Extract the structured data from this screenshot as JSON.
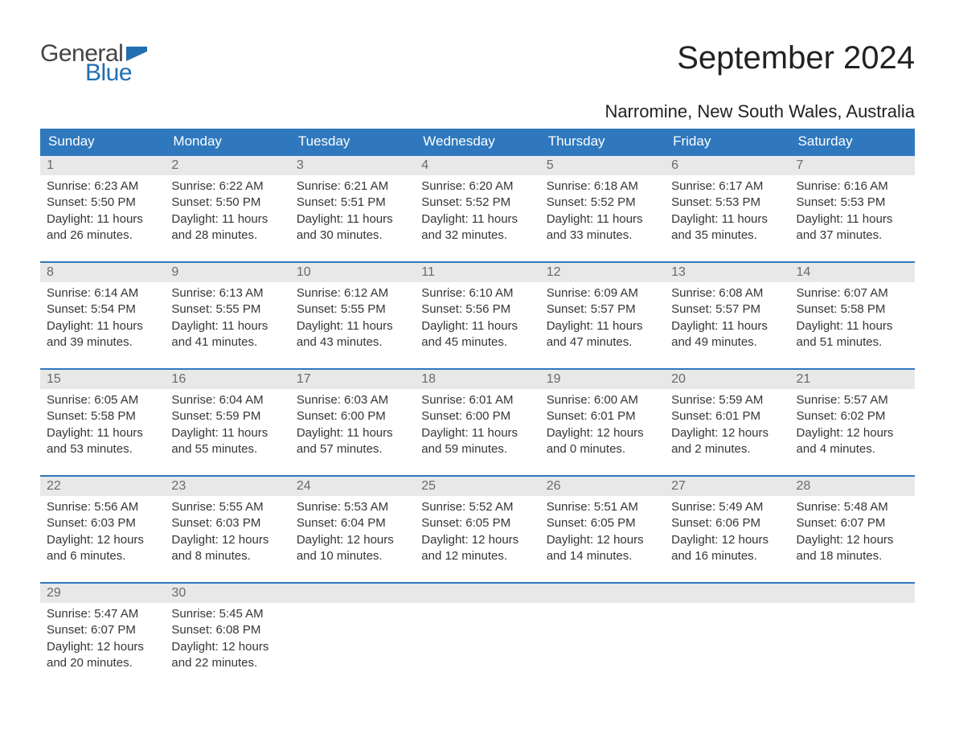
{
  "brand": {
    "word1": "General",
    "word2": "Blue",
    "word1_color": "#444444",
    "word2_color": "#1f6fb2",
    "flag_color": "#1f6fb2"
  },
  "title": "September 2024",
  "location": "Narromine, New South Wales, Australia",
  "colors": {
    "header_bg": "#2f78be",
    "header_text": "#ffffff",
    "daynum_bg": "#e8e8e8",
    "daynum_text": "#6a6a6a",
    "body_text": "#353535",
    "week_border": "#2f78be",
    "page_bg": "#ffffff"
  },
  "typography": {
    "title_fontsize": 40,
    "location_fontsize": 22,
    "dow_fontsize": 17,
    "daynum_fontsize": 16,
    "body_fontsize": 15
  },
  "days_of_week": [
    "Sunday",
    "Monday",
    "Tuesday",
    "Wednesday",
    "Thursday",
    "Friday",
    "Saturday"
  ],
  "labels": {
    "sunrise": "Sunrise:",
    "sunset": "Sunset:",
    "daylight": "Daylight:"
  },
  "weeks": [
    [
      {
        "n": "1",
        "sunrise": "6:23 AM",
        "sunset": "5:50 PM",
        "daylight": "11 hours and 26 minutes."
      },
      {
        "n": "2",
        "sunrise": "6:22 AM",
        "sunset": "5:50 PM",
        "daylight": "11 hours and 28 minutes."
      },
      {
        "n": "3",
        "sunrise": "6:21 AM",
        "sunset": "5:51 PM",
        "daylight": "11 hours and 30 minutes."
      },
      {
        "n": "4",
        "sunrise": "6:20 AM",
        "sunset": "5:52 PM",
        "daylight": "11 hours and 32 minutes."
      },
      {
        "n": "5",
        "sunrise": "6:18 AM",
        "sunset": "5:52 PM",
        "daylight": "11 hours and 33 minutes."
      },
      {
        "n": "6",
        "sunrise": "6:17 AM",
        "sunset": "5:53 PM",
        "daylight": "11 hours and 35 minutes."
      },
      {
        "n": "7",
        "sunrise": "6:16 AM",
        "sunset": "5:53 PM",
        "daylight": "11 hours and 37 minutes."
      }
    ],
    [
      {
        "n": "8",
        "sunrise": "6:14 AM",
        "sunset": "5:54 PM",
        "daylight": "11 hours and 39 minutes."
      },
      {
        "n": "9",
        "sunrise": "6:13 AM",
        "sunset": "5:55 PM",
        "daylight": "11 hours and 41 minutes."
      },
      {
        "n": "10",
        "sunrise": "6:12 AM",
        "sunset": "5:55 PM",
        "daylight": "11 hours and 43 minutes."
      },
      {
        "n": "11",
        "sunrise": "6:10 AM",
        "sunset": "5:56 PM",
        "daylight": "11 hours and 45 minutes."
      },
      {
        "n": "12",
        "sunrise": "6:09 AM",
        "sunset": "5:57 PM",
        "daylight": "11 hours and 47 minutes."
      },
      {
        "n": "13",
        "sunrise": "6:08 AM",
        "sunset": "5:57 PM",
        "daylight": "11 hours and 49 minutes."
      },
      {
        "n": "14",
        "sunrise": "6:07 AM",
        "sunset": "5:58 PM",
        "daylight": "11 hours and 51 minutes."
      }
    ],
    [
      {
        "n": "15",
        "sunrise": "6:05 AM",
        "sunset": "5:58 PM",
        "daylight": "11 hours and 53 minutes."
      },
      {
        "n": "16",
        "sunrise": "6:04 AM",
        "sunset": "5:59 PM",
        "daylight": "11 hours and 55 minutes."
      },
      {
        "n": "17",
        "sunrise": "6:03 AM",
        "sunset": "6:00 PM",
        "daylight": "11 hours and 57 minutes."
      },
      {
        "n": "18",
        "sunrise": "6:01 AM",
        "sunset": "6:00 PM",
        "daylight": "11 hours and 59 minutes."
      },
      {
        "n": "19",
        "sunrise": "6:00 AM",
        "sunset": "6:01 PM",
        "daylight": "12 hours and 0 minutes."
      },
      {
        "n": "20",
        "sunrise": "5:59 AM",
        "sunset": "6:01 PM",
        "daylight": "12 hours and 2 minutes."
      },
      {
        "n": "21",
        "sunrise": "5:57 AM",
        "sunset": "6:02 PM",
        "daylight": "12 hours and 4 minutes."
      }
    ],
    [
      {
        "n": "22",
        "sunrise": "5:56 AM",
        "sunset": "6:03 PM",
        "daylight": "12 hours and 6 minutes."
      },
      {
        "n": "23",
        "sunrise": "5:55 AM",
        "sunset": "6:03 PM",
        "daylight": "12 hours and 8 minutes."
      },
      {
        "n": "24",
        "sunrise": "5:53 AM",
        "sunset": "6:04 PM",
        "daylight": "12 hours and 10 minutes."
      },
      {
        "n": "25",
        "sunrise": "5:52 AM",
        "sunset": "6:05 PM",
        "daylight": "12 hours and 12 minutes."
      },
      {
        "n": "26",
        "sunrise": "5:51 AM",
        "sunset": "6:05 PM",
        "daylight": "12 hours and 14 minutes."
      },
      {
        "n": "27",
        "sunrise": "5:49 AM",
        "sunset": "6:06 PM",
        "daylight": "12 hours and 16 minutes."
      },
      {
        "n": "28",
        "sunrise": "5:48 AM",
        "sunset": "6:07 PM",
        "daylight": "12 hours and 18 minutes."
      }
    ],
    [
      {
        "n": "29",
        "sunrise": "5:47 AM",
        "sunset": "6:07 PM",
        "daylight": "12 hours and 20 minutes."
      },
      {
        "n": "30",
        "sunrise": "5:45 AM",
        "sunset": "6:08 PM",
        "daylight": "12 hours and 22 minutes."
      },
      {
        "n": "",
        "empty": true
      },
      {
        "n": "",
        "empty": true
      },
      {
        "n": "",
        "empty": true
      },
      {
        "n": "",
        "empty": true
      },
      {
        "n": "",
        "empty": true
      }
    ]
  ]
}
